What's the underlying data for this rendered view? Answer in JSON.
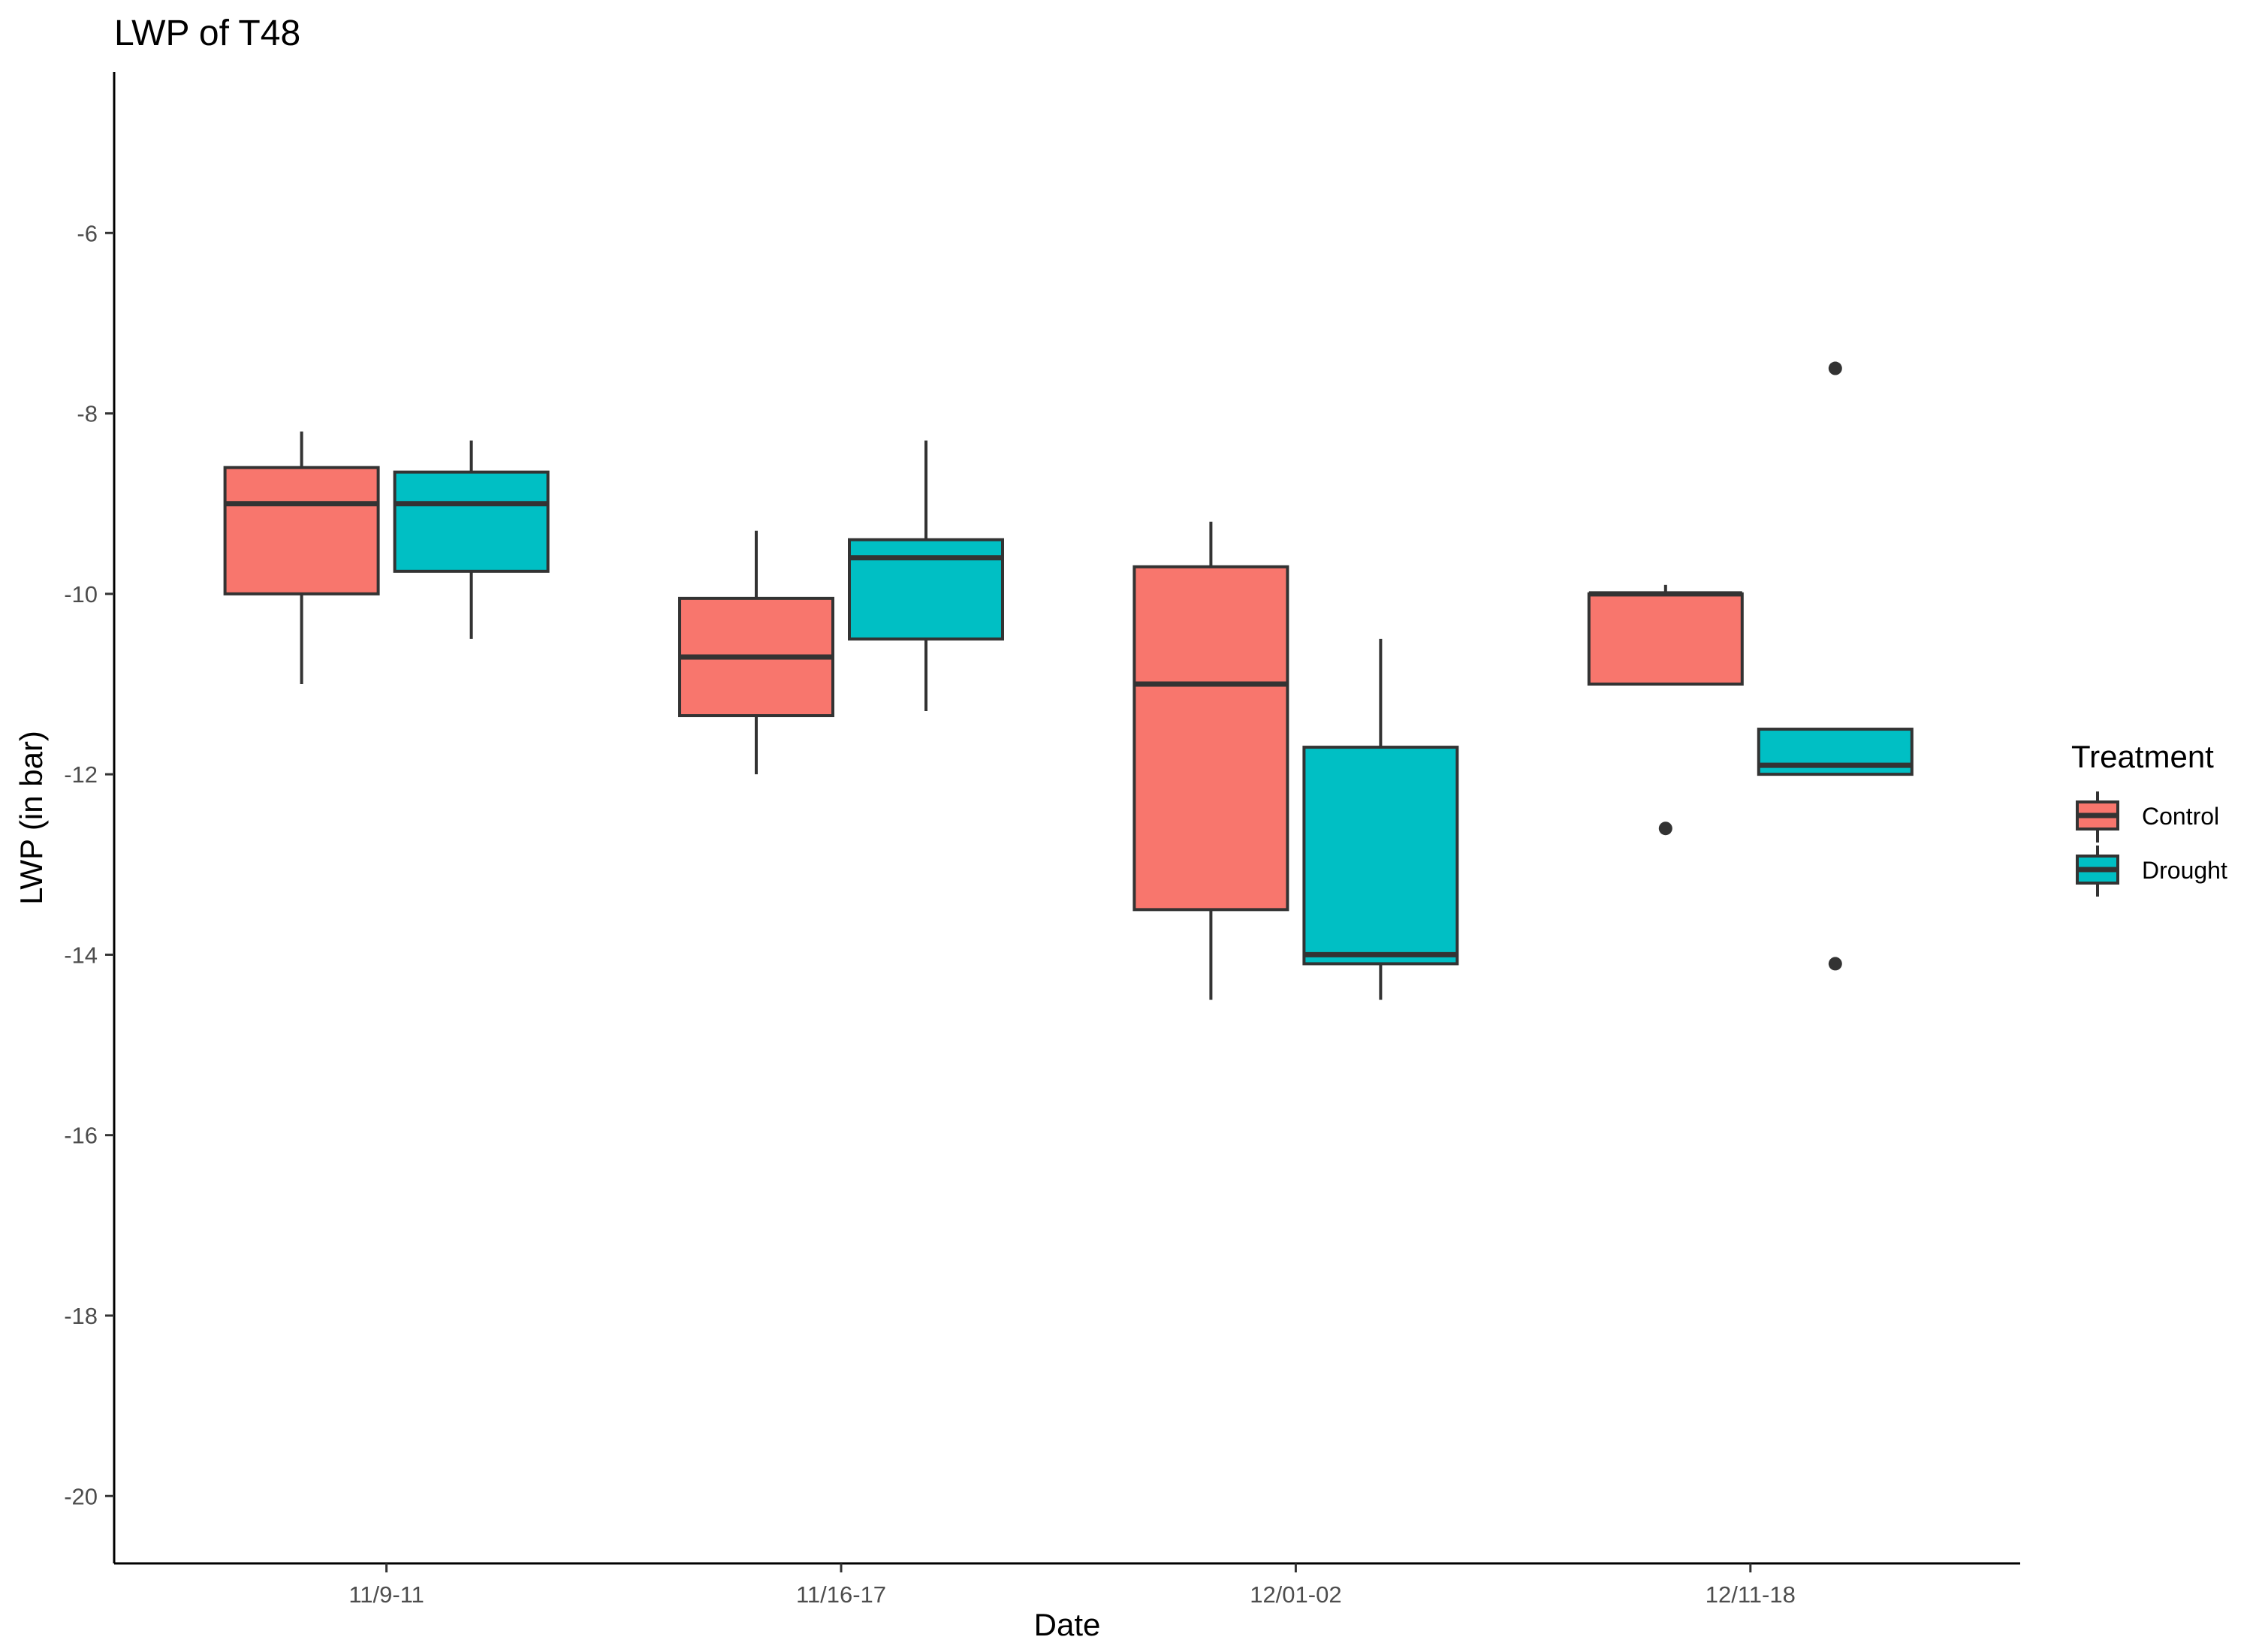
{
  "chart_data": {
    "type": "boxplot",
    "title": "LWP of T48",
    "xlabel": "Date",
    "ylabel": "LWP (in bar)",
    "ylim": [
      -20.75,
      -4.25
    ],
    "yticks": [
      -6,
      -8,
      -10,
      -12,
      -14,
      -16,
      -18,
      -20
    ],
    "categories": [
      "11/9-11",
      "11/16-17",
      "12/01-02",
      "12/11-18"
    ],
    "grid": false,
    "legend": {
      "title": "Treatment",
      "position": "right"
    },
    "series": [
      {
        "name": "Control",
        "color": "#F8766D",
        "boxes": [
          {
            "lower_whisker": -11.0,
            "q1": -10.0,
            "median": -9.0,
            "q3": -8.6,
            "upper_whisker": -8.2,
            "outliers": []
          },
          {
            "lower_whisker": -12.0,
            "q1": -11.35,
            "median": -10.7,
            "q3": -10.05,
            "upper_whisker": -9.3,
            "outliers": []
          },
          {
            "lower_whisker": -14.5,
            "q1": -13.5,
            "median": -11.0,
            "q3": -9.7,
            "upper_whisker": -9.2,
            "outliers": []
          },
          {
            "lower_whisker": -11.0,
            "q1": -11.0,
            "median": -10.0,
            "q3": -10.0,
            "upper_whisker": -9.9,
            "outliers": [
              -12.6
            ]
          }
        ]
      },
      {
        "name": "Drought",
        "color": "#00BFC4",
        "boxes": [
          {
            "lower_whisker": -10.5,
            "q1": -9.75,
            "median": -9.0,
            "q3": -8.65,
            "upper_whisker": -8.3,
            "outliers": []
          },
          {
            "lower_whisker": -11.3,
            "q1": -10.5,
            "median": -9.6,
            "q3": -9.4,
            "upper_whisker": -8.3,
            "outliers": []
          },
          {
            "lower_whisker": -14.5,
            "q1": -14.1,
            "median": -14.0,
            "q3": -11.7,
            "upper_whisker": -10.5,
            "outliers": []
          },
          {
            "lower_whisker": -12.0,
            "q1": -12.0,
            "median": -11.9,
            "q3": -11.5,
            "upper_whisker": -11.5,
            "outliers": [
              -7.5,
              -14.1
            ]
          }
        ]
      }
    ]
  }
}
